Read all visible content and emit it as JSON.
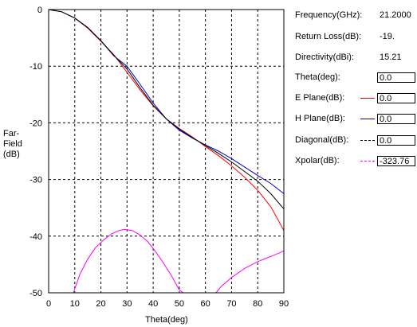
{
  "chart_data": {
    "type": "line",
    "xlabel": "Theta(deg)",
    "ylabel_lines": [
      "Far-",
      "Field",
      "(dB)"
    ],
    "xlim": [
      0,
      90
    ],
    "ylim": [
      -50,
      0
    ],
    "x_ticks": [
      0,
      10,
      20,
      30,
      40,
      50,
      60,
      70,
      80,
      90
    ],
    "y_ticks": [
      0,
      -10,
      -20,
      -30,
      -40,
      -50
    ],
    "x_tick_labels": [
      "0",
      "10",
      "20",
      "30",
      "40",
      "50",
      "60",
      "70",
      "80",
      "90"
    ],
    "y_tick_labels": [
      "0",
      "-10",
      "-20",
      "-30",
      "-40",
      "-50"
    ],
    "grid": true,
    "series": [
      {
        "name": "E Plane(dB)",
        "color": "#ff0000",
        "x": [
          0,
          5,
          10,
          15,
          20,
          25,
          30,
          35,
          40,
          45,
          50,
          55,
          60,
          65,
          70,
          75,
          80,
          85,
          90
        ],
        "y": [
          0,
          -0.4,
          -1.5,
          -3.3,
          -5.6,
          -8.0,
          -11.1,
          -14.2,
          -17.0,
          -19.3,
          -21.0,
          -22.5,
          -24.2,
          -25.8,
          -27.6,
          -29.6,
          -31.9,
          -34.8,
          -39.0
        ]
      },
      {
        "name": "H Plane(dB)",
        "color": "#0000c0",
        "x": [
          0,
          5,
          10,
          15,
          20,
          25,
          30,
          35,
          40,
          45,
          50,
          55,
          60,
          65,
          70,
          75,
          80,
          85,
          90
        ],
        "y": [
          0,
          -0.4,
          -1.5,
          -3.2,
          -5.5,
          -8.2,
          -10.0,
          -13.2,
          -16.5,
          -19.3,
          -21.3,
          -22.7,
          -23.9,
          -25.0,
          -26.3,
          -27.8,
          -29.3,
          -30.7,
          -32.5
        ]
      },
      {
        "name": "Diagonal(dB)",
        "color": "#000000",
        "x": [
          0,
          5,
          10,
          15,
          20,
          25,
          30,
          35,
          40,
          45,
          50,
          55,
          60,
          65,
          70,
          75,
          80,
          85,
          90
        ],
        "y": [
          0,
          -0.4,
          -1.5,
          -3.2,
          -5.5,
          -8.1,
          -10.5,
          -13.8,
          -16.9,
          -19.3,
          -21.1,
          -22.6,
          -24.0,
          -25.4,
          -26.9,
          -28.6,
          -30.3,
          -32.5,
          -35.2
        ]
      },
      {
        "name": "Xpolar(dB)",
        "color": "#ff00ff",
        "segments": [
          {
            "x": [
              9.5,
              12,
              15,
              18,
              21,
              24,
              27,
              29,
              32,
              35,
              38,
              41,
              44,
              47,
              50,
              51.5
            ],
            "y": [
              -50,
              -46.7,
              -44.0,
              -42.0,
              -40.7,
              -39.6,
              -39.0,
              -38.8,
              -39.0,
              -39.8,
              -41.0,
              -42.8,
              -44.8,
              -47.0,
              -49.5,
              -50
            ]
          },
          {
            "x": [
              64,
              66,
              70,
              75,
              80,
              85,
              90
            ],
            "y": [
              -50,
              -48.9,
              -47.3,
              -45.7,
              -44.5,
              -43.6,
              -42.6
            ]
          }
        ]
      }
    ]
  },
  "panel": {
    "frequency_label": "Frequency(GHz):",
    "frequency_value": "21.2000",
    "return_loss_label": "Return Loss(dB):",
    "return_loss_value": "-19.",
    "directivity_label": "Directivity(dBi):",
    "directivity_value": "15.21",
    "theta_label": "Theta(deg):",
    "theta_value": "0.0",
    "e_plane_label": "E Plane(dB):",
    "e_plane_value": "0.0",
    "h_plane_label": "H Plane(dB):",
    "h_plane_value": "0.0",
    "diagonal_label": "Diagonal(dB):",
    "diagonal_value": "0.0",
    "xpolar_label": "Xpolar(dB):",
    "xpolar_value": "-323.76"
  }
}
